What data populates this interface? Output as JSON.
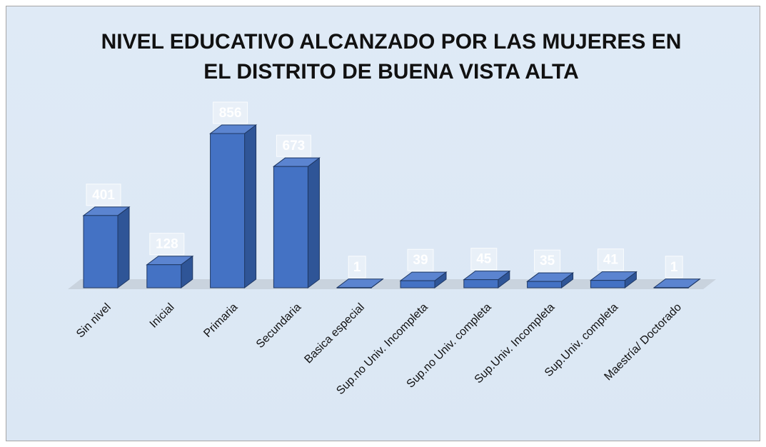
{
  "chart_data": {
    "type": "bar3d",
    "title": [
      "NIVEL EDUCATIVO ALCANZADO POR LAS MUJERES EN",
      "EL DISTRITO DE BUENA VISTA ALTA"
    ],
    "categories": [
      "Sin nivel",
      "Inicial",
      "Primaria",
      "Secundaria",
      "Basica especial",
      "Sup.no Univ. Incompleta",
      "Sup.no Univ. completa",
      "Sup.Univ. Incompleta",
      "Sup.Univ. completa",
      "Maestría/ Doctorado"
    ],
    "values": [
      401,
      128,
      856,
      673,
      1,
      39,
      45,
      35,
      41,
      1
    ],
    "color": "#4472c4"
  }
}
